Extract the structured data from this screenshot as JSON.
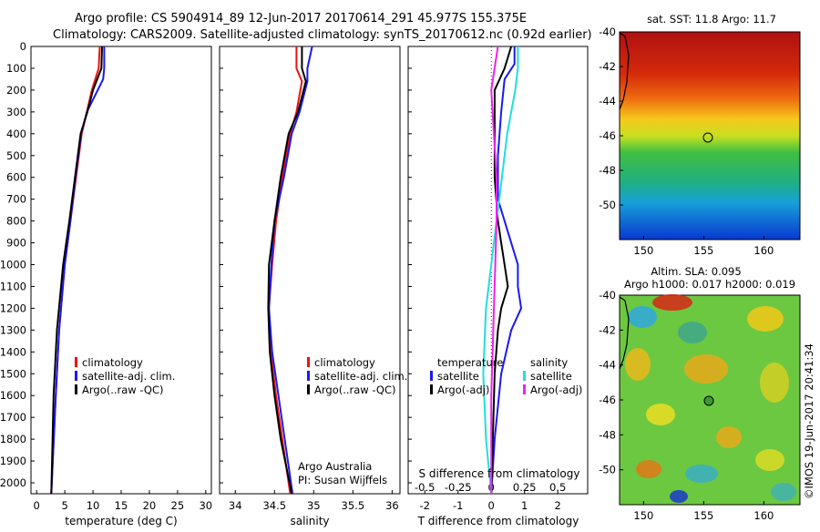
{
  "header": {
    "line1": "Argo profile: CS 5904914_89 12-Jun-2017 20170614_291 45.977S 155.375E",
    "line2": "Climatology: CARS2009. Satellite-adjusted climatology: synTS_20170612.nc (0.92d earlier)"
  },
  "colors": {
    "climatology": "#ee1111",
    "satellite": "#1a1aee",
    "argo": "#000000",
    "satellite_salinity": "#22dddd",
    "argo_salinity": "#ee22ee"
  },
  "legend": {
    "climatology": "climatology",
    "satellite_adj": "satellite-adj. clim.",
    "argo_raw": "Argo(..raw -QC)",
    "temperature_head": "temperature",
    "salinity_head": "salinity",
    "satellite": "satellite",
    "argo_adj": "Argo(-adj)"
  },
  "credits": {
    "org": "Argo Australia",
    "pi": "PI: Susan Wijffels",
    "stamp": "©IMOS 19-Jun-2017 20:41:34"
  },
  "panels": {
    "temperature": {
      "xlabel": "temperature (deg C)",
      "xticks": [
        "0",
        "5",
        "10",
        "15",
        "20",
        "25",
        "30"
      ]
    },
    "salinity": {
      "xlabel": "salinity",
      "xticks": [
        "34",
        "34.5",
        "35",
        "35.5",
        "36"
      ]
    },
    "difference": {
      "xlabel": "T difference from climatology",
      "xlabel_top": "S difference from climatology",
      "xticks": [
        "-2",
        "-1",
        "0",
        "1",
        "2"
      ],
      "xticks_top": [
        "-0.5",
        "-0.25",
        "0",
        "0.25",
        "0.5"
      ]
    },
    "sst_map": {
      "title": "sat. SST: 11.8 Argo: 11.7"
    },
    "sla_map": {
      "title1": "Altim. SLA: 0.095",
      "title2": "Argo h1000: 0.017 h2000: 0.019"
    }
  },
  "depth_ticks": [
    "0",
    "100",
    "200",
    "300",
    "400",
    "500",
    "600",
    "700",
    "800",
    "900",
    "1000",
    "1100",
    "1200",
    "1300",
    "1400",
    "1500",
    "1600",
    "1700",
    "1800",
    "1900",
    "2000"
  ],
  "map_yticks": [
    "-40",
    "-42",
    "-44",
    "-46",
    "-48",
    "-50"
  ],
  "map_xticks": [
    "150",
    "155",
    "160"
  ],
  "chart_data": [
    {
      "type": "line",
      "xlabel": "temperature (deg C)",
      "ylabel": "",
      "xlim": [
        -1,
        31
      ],
      "ylim": [
        2050,
        0
      ],
      "series": [
        {
          "name": "climatology",
          "x": [
            11.2,
            11.0,
            9.8,
            8.9,
            8.0,
            7.0,
            6.0,
            5.0,
            4.0,
            3.4,
            2.6
          ],
          "y": [
            0,
            100,
            200,
            300,
            400,
            600,
            800,
            1000,
            1300,
            1600,
            2050
          ]
        },
        {
          "name": "satellite-adj. clim.",
          "x": [
            12.0,
            12.0,
            11.8,
            8.9,
            7.9,
            6.9,
            6.0,
            5.0,
            4.0,
            3.4,
            2.6
          ],
          "y": [
            0,
            100,
            150,
            300,
            400,
            600,
            800,
            1000,
            1300,
            1600,
            2050
          ]
        },
        {
          "name": "Argo(..raw -QC)",
          "x": [
            11.6,
            11.5,
            10.0,
            9.0,
            7.8,
            6.8,
            5.8,
            4.7,
            3.6,
            3.0,
            2.6
          ],
          "y": [
            0,
            100,
            200,
            300,
            400,
            600,
            800,
            1000,
            1300,
            1600,
            2050
          ]
        }
      ]
    },
    {
      "type": "line",
      "xlabel": "salinity",
      "ylabel": "",
      "xlim": [
        33.8,
        36.1
      ],
      "ylim": [
        2050,
        0
      ],
      "series": [
        {
          "name": "climatology",
          "x": [
            34.78,
            34.78,
            34.85,
            34.78,
            34.7,
            34.6,
            34.52,
            34.47,
            34.43,
            34.45,
            34.52,
            34.6,
            34.7
          ],
          "y": [
            0,
            100,
            160,
            300,
            400,
            600,
            800,
            1000,
            1200,
            1400,
            1600,
            1800,
            2050
          ]
        },
        {
          "name": "satellite-adj. clim.",
          "x": [
            34.98,
            34.92,
            34.92,
            34.82,
            34.72,
            34.62,
            34.5,
            34.46,
            34.43,
            34.47,
            34.55,
            34.63,
            34.73
          ],
          "y": [
            0,
            100,
            160,
            300,
            400,
            600,
            800,
            1000,
            1200,
            1400,
            1600,
            1800,
            2050
          ]
        },
        {
          "name": "Argo(..raw -QC)",
          "x": [
            34.85,
            34.85,
            34.9,
            34.8,
            34.68,
            34.58,
            34.5,
            34.43,
            34.42,
            34.44,
            34.5,
            34.58,
            34.72
          ],
          "y": [
            0,
            100,
            160,
            300,
            400,
            600,
            800,
            1000,
            1200,
            1400,
            1600,
            1800,
            2050
          ]
        }
      ]
    },
    {
      "type": "line",
      "xlabel": "T difference from climatology",
      "x2label": "S difference from climatology",
      "xlim": [
        -2.5,
        2.9
      ],
      "x2lim": [
        -0.625,
        0.725
      ],
      "ylim": [
        2050,
        0
      ],
      "series": [
        {
          "name": "satellite",
          "axis": "T",
          "x": [
            0.7,
            0.7,
            0.4,
            0.3,
            0.2,
            0.2,
            0.4,
            0.6,
            0.8,
            0.8,
            0.9,
            0.6,
            0.3,
            0.1,
            0.0
          ],
          "y": [
            0,
            80,
            150,
            300,
            500,
            700,
            800,
            900,
            1000,
            1100,
            1200,
            1300,
            1500,
            1800,
            2050
          ]
        },
        {
          "name": "Argo(-adj)",
          "axis": "T",
          "x": [
            0.6,
            0.4,
            0.1,
            0.1,
            0.1,
            0.2,
            0.3,
            0.4,
            0.5,
            0.3,
            0.2,
            0.1,
            0.0
          ],
          "y": [
            0,
            100,
            200,
            400,
            600,
            800,
            900,
            1000,
            1100,
            1200,
            1300,
            1500,
            2050
          ]
        },
        {
          "name": "satellite",
          "axis": "S",
          "x": [
            0.2,
            0.2,
            0.18,
            0.12,
            0.08,
            0.04,
            0.0,
            -0.04,
            -0.06,
            -0.04,
            0.0
          ],
          "y": [
            0,
            100,
            200,
            400,
            600,
            800,
            1000,
            1200,
            1500,
            1800,
            2050
          ]
        },
        {
          "name": "Argo(-adj)",
          "axis": "S",
          "x": [
            0.05,
            0.0,
            0.02,
            0.04,
            0.04,
            0.03,
            0.02,
            0.01,
            0.0,
            0.0,
            0.0
          ],
          "y": [
            0,
            200,
            400,
            600,
            800,
            1000,
            1200,
            1400,
            1600,
            1800,
            2050
          ]
        }
      ]
    }
  ]
}
